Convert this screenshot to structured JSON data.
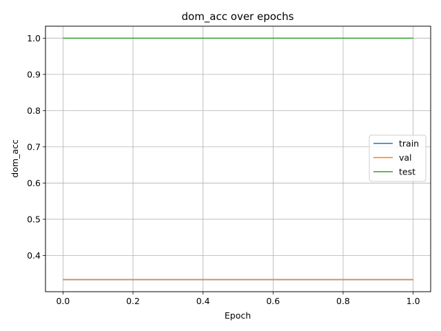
{
  "chart_data": {
    "type": "line",
    "title": "dom_acc over epochs",
    "xlabel": "Epoch",
    "ylabel": "dom_acc",
    "x": [
      0.0,
      1.0
    ],
    "xlim": [
      -0.05,
      1.05
    ],
    "ylim": [
      0.3,
      1.033
    ],
    "xticks": [
      0.0,
      0.2,
      0.4,
      0.6,
      0.8,
      1.0
    ],
    "xtick_labels": [
      "0.0",
      "0.2",
      "0.4",
      "0.6",
      "0.8",
      "1.0"
    ],
    "yticks": [
      0.4,
      0.5,
      0.6,
      0.7,
      0.8,
      0.9,
      1.0
    ],
    "ytick_labels": [
      "0.4",
      "0.5",
      "0.6",
      "0.7",
      "0.8",
      "0.9",
      "1.0"
    ],
    "grid": true,
    "legend_position": "center-right",
    "series": [
      {
        "name": "train",
        "values": [
          0.3333,
          0.3333
        ],
        "color": "#1f77b4"
      },
      {
        "name": "val",
        "values": [
          0.3333,
          0.3333
        ],
        "color": "#ff7f0e"
      },
      {
        "name": "test",
        "values": [
          1.0,
          1.0
        ],
        "color": "#2ca02c"
      }
    ]
  }
}
